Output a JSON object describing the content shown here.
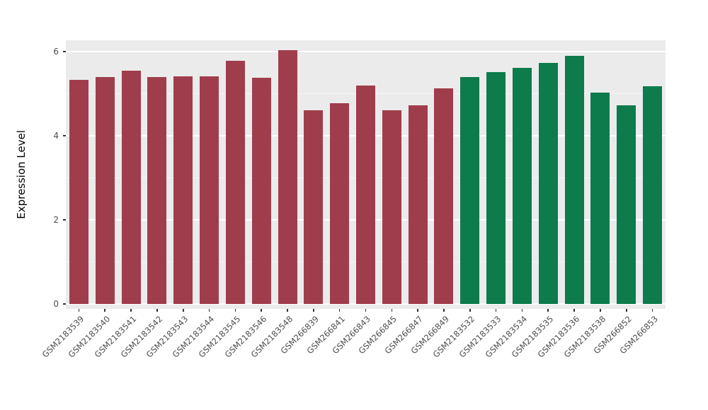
{
  "chart_data": {
    "type": "bar",
    "title": "",
    "xlabel": "",
    "ylabel": "Expression Level",
    "ylim": [
      0,
      6.2
    ],
    "yticks": [
      0,
      2,
      4,
      6
    ],
    "grid": "white major and minor gridlines on gray panel",
    "legend_position": "none",
    "categories": [
      "GSM2183539",
      "GSM2183540",
      "GSM2183541",
      "GSM2183542",
      "GSM2183543",
      "GSM2183544",
      "GSM2183545",
      "GSM2183546",
      "GSM2183548",
      "GSM266839",
      "GSM266841",
      "GSM266843",
      "GSM266845",
      "GSM266847",
      "GSM266849",
      "GSM2183532",
      "GSM2183533",
      "GSM2183534",
      "GSM2183535",
      "GSM2183536",
      "GSM2183538",
      "GSM266852",
      "GSM266853"
    ],
    "values": [
      5.32,
      5.4,
      5.55,
      5.4,
      5.42,
      5.42,
      5.78,
      5.38,
      6.04,
      4.6,
      4.78,
      5.2,
      4.6,
      4.72,
      5.12,
      5.4,
      5.52,
      5.62,
      5.73,
      5.9,
      5.02,
      4.72,
      5.18
    ],
    "groups": [
      "A",
      "A",
      "A",
      "A",
      "A",
      "A",
      "A",
      "A",
      "A",
      "A",
      "A",
      "A",
      "A",
      "A",
      "A",
      "B",
      "B",
      "B",
      "B",
      "B",
      "B",
      "B",
      "B"
    ],
    "group_colors": {
      "A": "#A03D4C",
      "B": "#0D7B4B"
    },
    "colors": {
      "panel_background": "#EBEBEB",
      "gridline": "#FFFFFF",
      "axis_text": "#4D4D4D",
      "axis_title": "#000000"
    }
  }
}
